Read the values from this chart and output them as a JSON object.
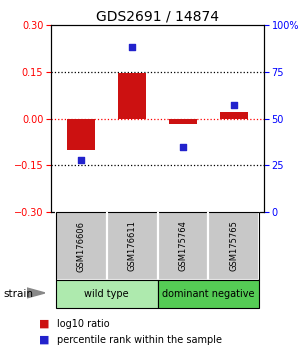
{
  "title": "GDS2691 / 14874",
  "samples": [
    "GSM176606",
    "GSM176611",
    "GSM175764",
    "GSM175765"
  ],
  "log10_ratio": [
    -0.1,
    0.145,
    -0.018,
    0.022
  ],
  "percentile_rank": [
    28,
    88,
    35,
    57
  ],
  "ylim_left": [
    -0.3,
    0.3
  ],
  "ylim_right": [
    0,
    100
  ],
  "yticks_left": [
    -0.3,
    -0.15,
    0,
    0.15,
    0.3
  ],
  "yticks_right": [
    0,
    25,
    50,
    75,
    100
  ],
  "ytick_labels_right": [
    "0",
    "25",
    "50",
    "75",
    "100%"
  ],
  "hlines": [
    0.15,
    0.0,
    -0.15
  ],
  "hline_colors": [
    "black",
    "red",
    "black"
  ],
  "bar_color": "#cc1111",
  "scatter_color": "#2222cc",
  "groups": [
    {
      "label": "wild type",
      "indices": [
        0,
        1
      ],
      "color": "#aeeaae"
    },
    {
      "label": "dominant negative",
      "indices": [
        2,
        3
      ],
      "color": "#55cc55"
    }
  ],
  "sample_box_color": "#c8c8c8",
  "legend_bar_label": "log10 ratio",
  "legend_scatter_label": "percentile rank within the sample",
  "strain_label": "strain",
  "bar_width": 0.55,
  "title_fontsize": 10,
  "tick_fontsize": 7,
  "label_fontsize": 7.5
}
